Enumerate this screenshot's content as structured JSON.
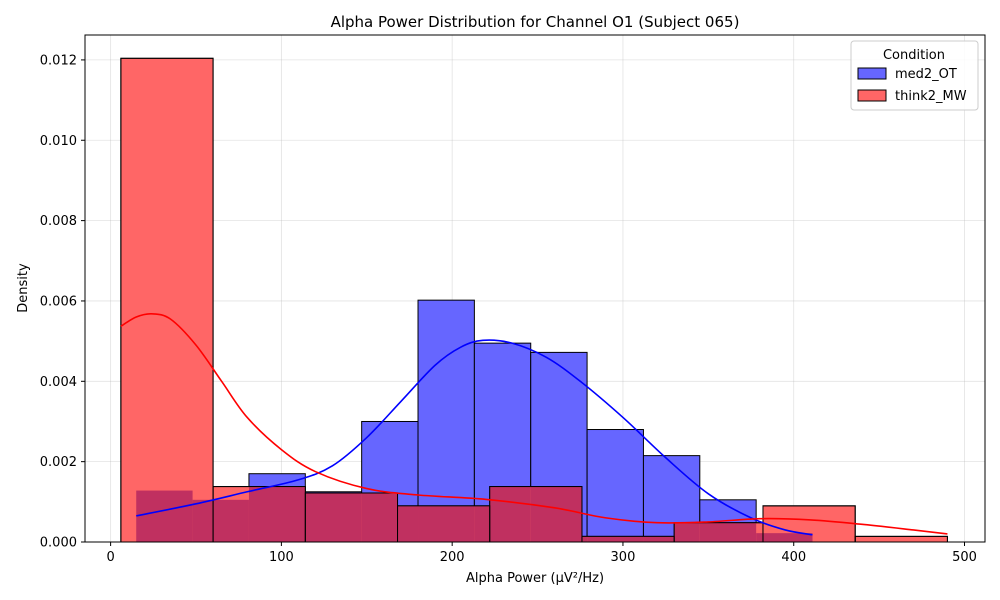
{
  "chart_data": {
    "type": "bar",
    "subtype": "histogram-with-kde",
    "title": "Alpha Power Distribution for Channel O1 (Subject 065)",
    "xlabel": "Alpha Power (µV²/Hz)",
    "ylabel": "Density",
    "xlim": [
      -15,
      512
    ],
    "ylim": [
      0,
      0.01262
    ],
    "xticks": [
      0,
      100,
      200,
      300,
      400,
      500
    ],
    "yticks": [
      0.0,
      0.002,
      0.004,
      0.006,
      0.008,
      0.01,
      0.012
    ],
    "ytick_labels": [
      "0.000",
      "0.002",
      "0.004",
      "0.006",
      "0.008",
      "0.010",
      "0.012"
    ],
    "grid": true,
    "legend": {
      "title": "Condition",
      "placement": "top-right"
    },
    "series": [
      {
        "name": "med2_OT",
        "bar_color": "#6666ff",
        "kde_color": "#0000ff",
        "bins": [
          {
            "x0": 15,
            "x1": 48,
            "density": 0.00128
          },
          {
            "x0": 48,
            "x1": 81,
            "density": 0.00105
          },
          {
            "x0": 81,
            "x1": 114,
            "density": 0.0017
          },
          {
            "x0": 114,
            "x1": 147,
            "density": 0.00125
          },
          {
            "x0": 147,
            "x1": 180,
            "density": 0.003
          },
          {
            "x0": 180,
            "x1": 213,
            "density": 0.00602
          },
          {
            "x0": 213,
            "x1": 246,
            "density": 0.00495
          },
          {
            "x0": 246,
            "x1": 279,
            "density": 0.00472
          },
          {
            "x0": 279,
            "x1": 312,
            "density": 0.0028
          },
          {
            "x0": 312,
            "x1": 345,
            "density": 0.00215
          },
          {
            "x0": 345,
            "x1": 378,
            "density": 0.00105
          },
          {
            "x0": 378,
            "x1": 411,
            "density": 0.00022
          }
        ],
        "kde": [
          [
            15,
            0.00065
          ],
          [
            50,
            0.00095
          ],
          [
            80,
            0.00125
          ],
          [
            110,
            0.00155
          ],
          [
            130,
            0.0019
          ],
          [
            150,
            0.0026
          ],
          [
            170,
            0.0035
          ],
          [
            190,
            0.0044
          ],
          [
            205,
            0.00485
          ],
          [
            218,
            0.00502
          ],
          [
            235,
            0.00495
          ],
          [
            255,
            0.0046
          ],
          [
            275,
            0.004
          ],
          [
            300,
            0.0031
          ],
          [
            325,
            0.0021
          ],
          [
            350,
            0.0012
          ],
          [
            375,
            0.0006
          ],
          [
            395,
            0.0003
          ],
          [
            411,
            0.00018
          ]
        ]
      },
      {
        "name": "think2_MW",
        "bar_color": "#ff6666",
        "kde_color": "#ff0000",
        "bins": [
          {
            "x0": 6,
            "x1": 60,
            "density": 0.01204
          },
          {
            "x0": 60,
            "x1": 114,
            "density": 0.00138
          },
          {
            "x0": 114,
            "x1": 168,
            "density": 0.00122
          },
          {
            "x0": 168,
            "x1": 222,
            "density": 0.0009
          },
          {
            "x0": 222,
            "x1": 276,
            "density": 0.00138
          },
          {
            "x0": 276,
            "x1": 330,
            "density": 0.00014
          },
          {
            "x0": 330,
            "x1": 382,
            "density": 0.00048
          },
          {
            "x0": 382,
            "x1": 436,
            "density": 0.0009
          },
          {
            "x0": 436,
            "x1": 490,
            "density": 0.00014
          }
        ],
        "kde": [
          [
            6,
            0.00537
          ],
          [
            15,
            0.0056
          ],
          [
            24,
            0.00568
          ],
          [
            35,
            0.00555
          ],
          [
            50,
            0.0049
          ],
          [
            65,
            0.004
          ],
          [
            80,
            0.0031
          ],
          [
            100,
            0.0023
          ],
          [
            120,
            0.00175
          ],
          [
            150,
            0.00133
          ],
          [
            180,
            0.00117
          ],
          [
            220,
            0.00106
          ],
          [
            260,
            0.00085
          ],
          [
            290,
            0.0006
          ],
          [
            320,
            0.00048
          ],
          [
            350,
            0.0005
          ],
          [
            380,
            0.00058
          ],
          [
            410,
            0.00055
          ],
          [
            440,
            0.00044
          ],
          [
            470,
            0.0003
          ],
          [
            490,
            0.0002
          ]
        ]
      }
    ]
  }
}
